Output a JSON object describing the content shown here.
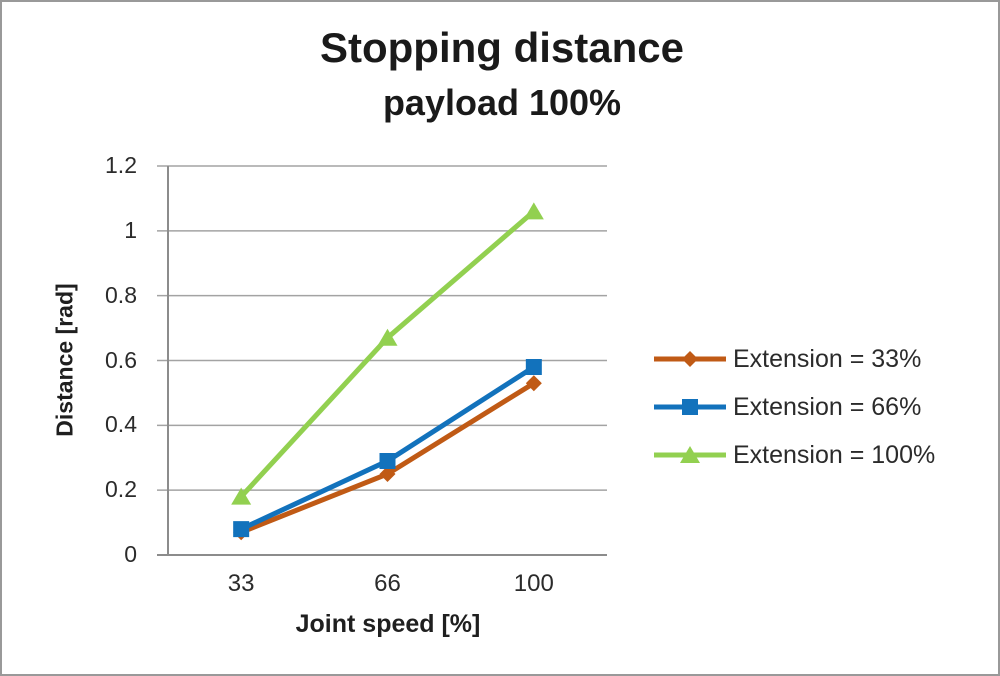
{
  "frame": {
    "background": "#ffffff",
    "border_color": "#999999"
  },
  "chart_data": {
    "type": "line",
    "title": "Stopping distance",
    "subtitle": "payload 100%",
    "xlabel": "Joint speed [%]",
    "ylabel": "Distance [rad]",
    "categories": [
      "33",
      "66",
      "100"
    ],
    "series": [
      {
        "name": "Extension = 33%",
        "color": "#C05A15",
        "marker": "diamond",
        "values": [
          0.07,
          0.25,
          0.53
        ]
      },
      {
        "name": "Extension = 66%",
        "color": "#1272BC",
        "marker": "square",
        "values": [
          0.08,
          0.29,
          0.58
        ]
      },
      {
        "name": "Extension = 100%",
        "color": "#92D050",
        "marker": "triangle",
        "values": [
          0.18,
          0.67,
          1.06
        ]
      }
    ],
    "ylim": [
      0,
      1.2
    ],
    "ytick_step": 0.2,
    "ytick_labels": [
      "0",
      "0.2",
      "0.4",
      "0.6",
      "0.8",
      "1",
      "1.2"
    ],
    "grid": true,
    "legend_position": "right",
    "gridline_color": "#A3A3A3",
    "axis_color": "#8C8C8C",
    "tick_text_color": "#2b2b2b"
  }
}
